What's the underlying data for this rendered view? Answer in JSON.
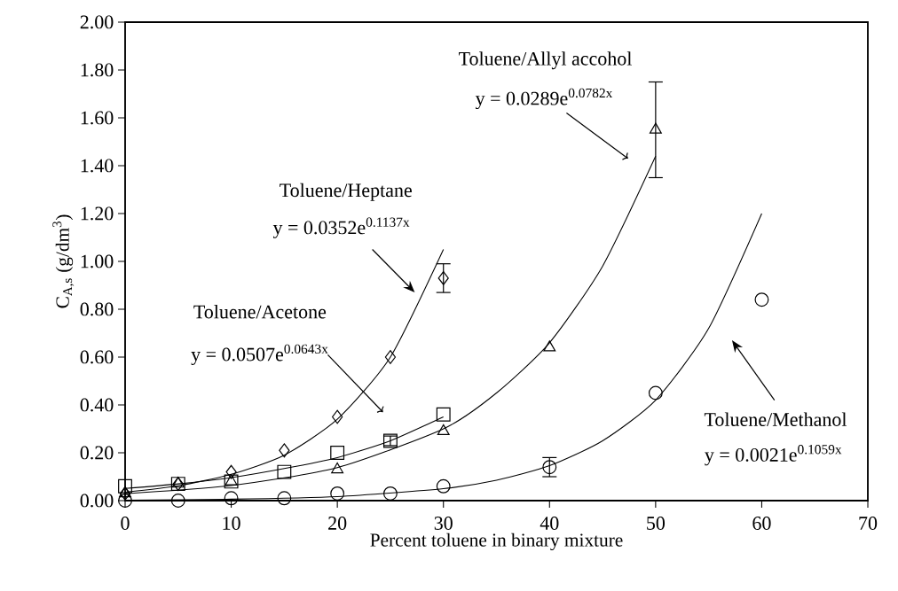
{
  "chart_data": {
    "type": "scatter",
    "xlabel": "Percent toluene in binary mixture",
    "ylabel": "C$_{A,s}$ (g/dm$^{3}$)",
    "xlim": [
      0,
      70
    ],
    "xticks": [
      0,
      10,
      20,
      30,
      40,
      50,
      60,
      70
    ],
    "ylim": [
      0,
      2
    ],
    "yticks": [
      {
        "value": 0,
        "label": "0.00"
      },
      {
        "value": 0.2,
        "label": "0.20"
      },
      {
        "value": 0.4,
        "label": "0.40"
      },
      {
        "value": 0.6,
        "label": "0.60"
      },
      {
        "value": 0.8,
        "label": "0.80"
      },
      {
        "value": 1.0,
        "label": "1.00"
      },
      {
        "value": 1.2,
        "label": "1.20"
      },
      {
        "value": 1.4,
        "label": "1.40"
      },
      {
        "value": 1.6,
        "label": "1.60"
      },
      {
        "value": 1.8,
        "label": "1.80"
      },
      {
        "value": 2.0,
        "label": "2.00"
      }
    ],
    "grid": false,
    "series": [
      {
        "marker": "diamond",
        "color": "#000000",
        "x": [
          0,
          5,
          10,
          15,
          20,
          25,
          30
        ],
        "values": [
          0.03,
          0.07,
          0.12,
          0.21,
          0.35,
          0.6,
          0.93
        ],
        "errors": [
          null,
          null,
          null,
          null,
          null,
          null,
          0.06
        ]
      },
      {
        "marker": "square",
        "color": "#000000",
        "x": [
          0,
          5,
          10,
          15,
          20,
          25,
          30
        ],
        "values": [
          0.06,
          0.07,
          0.08,
          0.12,
          0.2,
          0.25,
          0.36
        ],
        "errors": [
          null,
          null,
          null,
          null,
          null,
          0.02,
          null
        ]
      },
      {
        "marker": "triangle",
        "color": "#000000",
        "x": [
          0,
          5,
          10,
          20,
          30,
          40,
          50
        ],
        "values": [
          0.03,
          0.07,
          0.08,
          0.13,
          0.29,
          0.64,
          1.55
        ],
        "errors": [
          null,
          null,
          null,
          null,
          null,
          null,
          0.2
        ]
      },
      {
        "marker": "circle",
        "color": "#000000",
        "x": [
          0,
          5,
          10,
          15,
          20,
          25,
          30,
          40,
          50,
          60
        ],
        "values": [
          0.0,
          0.0,
          0.01,
          0.01,
          0.03,
          0.03,
          0.06,
          0.14,
          0.45,
          0.84
        ],
        "errors": [
          null,
          null,
          null,
          null,
          null,
          null,
          null,
          0.04,
          null,
          null
        ]
      },
      {
        "type": "line",
        "marker": "none",
        "line_style": "solid",
        "color": "#000000",
        "x": [
          0,
          5,
          10,
          15,
          20,
          25,
          30
        ],
        "values": [
          0.035,
          0.062,
          0.11,
          0.19,
          0.34,
          0.6,
          1.05
        ]
      },
      {
        "type": "line",
        "marker": "none",
        "line_style": "solid",
        "color": "#000000",
        "x": [
          0,
          5,
          10,
          15,
          20,
          25,
          30
        ],
        "values": [
          0.051,
          0.07,
          0.096,
          0.134,
          0.18,
          0.25,
          0.35
        ]
      },
      {
        "type": "line",
        "marker": "none",
        "line_style": "solid",
        "color": "#000000",
        "x": [
          0,
          10,
          20,
          30,
          35,
          40,
          45,
          50
        ],
        "values": [
          0.029,
          0.063,
          0.138,
          0.3,
          0.45,
          0.66,
          0.98,
          1.44
        ]
      },
      {
        "type": "line",
        "marker": "none",
        "line_style": "solid",
        "color": "#000000",
        "x": [
          0,
          10,
          20,
          30,
          35,
          40,
          45,
          50,
          55,
          60
        ],
        "values": [
          0.002,
          0.006,
          0.017,
          0.05,
          0.085,
          0.146,
          0.25,
          0.42,
          0.72,
          1.2
        ]
      }
    ],
    "annotations": [
      "Toluene/Allyl accohol",
      "y = 0.0289e$^{0.0782x}$",
      "Toluene/Heptane",
      "y = 0.0352e$^{0.1137x}$",
      "Toluene/Acetone",
      "y = 0.0507e$^{0.0643x}$",
      "Toluene/Methanol",
      "y = 0.0021e$^{0.1059x}$"
    ]
  }
}
